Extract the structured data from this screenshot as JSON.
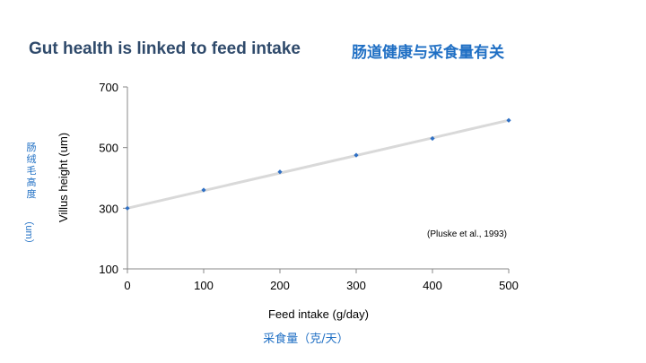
{
  "slide": {
    "title_en": "Gut health is linked to feed intake",
    "title_cn": "肠道健康与采食量有关",
    "ylabel_cn": "肠绒毛高度",
    "ylabel_unit": "（um）",
    "xlabel_cn": "采食量（克/天）"
  },
  "colors": {
    "title": "#2f4a6b",
    "accent_cn": "#1f6fc4",
    "points": "#2e6fc4",
    "trendline": "#d9d9d9"
  },
  "chart_data": {
    "type": "scatter",
    "xlabel": "Feed intake (g/day)",
    "ylabel": "Villus height (um)",
    "xlim": [
      0,
      500
    ],
    "ylim": [
      100,
      700
    ],
    "xticks": [
      "0",
      "100",
      "200",
      "300",
      "400",
      "500"
    ],
    "yticks": [
      "100",
      "300",
      "500",
      "700"
    ],
    "grid": false,
    "annotation": "(Pluske et al., 1993)",
    "points": [
      {
        "x": 0,
        "y": 300
      },
      {
        "x": 100,
        "y": 360
      },
      {
        "x": 200,
        "y": 420
      },
      {
        "x": 300,
        "y": 475
      },
      {
        "x": 400,
        "y": 530
      },
      {
        "x": 500,
        "y": 590
      }
    ],
    "trendline": {
      "x": [
        0,
        500
      ],
      "y": [
        300,
        590
      ]
    }
  }
}
